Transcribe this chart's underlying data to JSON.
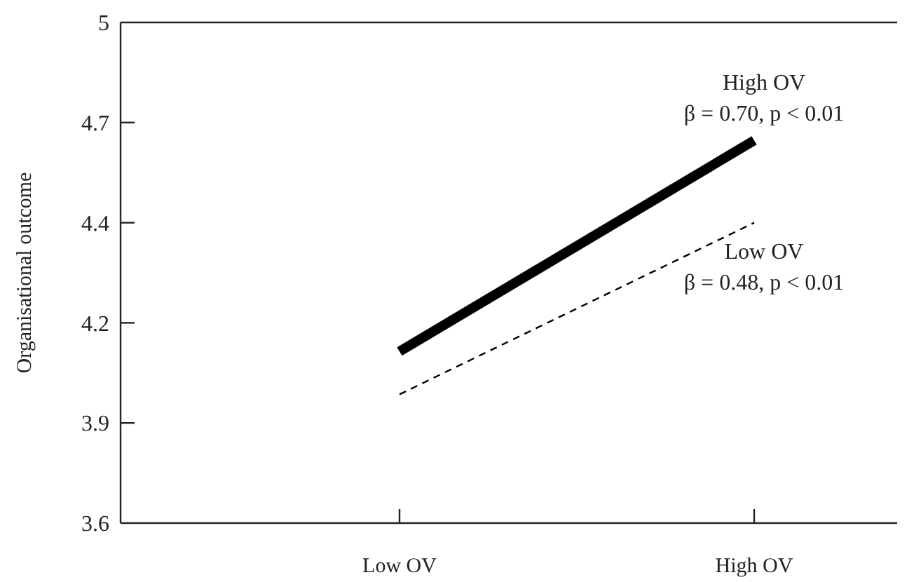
{
  "chart_data": {
    "type": "line",
    "ylabel": "Organisational outcome",
    "categories": [
      "Low OV",
      "High OV"
    ],
    "ylim": [
      3.6,
      5.0
    ],
    "yticks": [
      3.6,
      {
        "value": 3.88,
        "label": "3.9"
      },
      {
        "value": 4.16,
        "label": "4.2"
      },
      {
        "value": 4.44,
        "label": "4.4"
      },
      {
        "value": 4.72,
        "label": "4.7"
      },
      5.0
    ],
    "series": [
      {
        "name": "High OV",
        "color": "#000000",
        "line_style": "solid",
        "values": [
          4.08,
          4.67
        ]
      },
      {
        "name": "Low OV",
        "color": "#000000",
        "line_style": "dashed",
        "values": [
          3.96,
          4.44
        ]
      }
    ],
    "annotations": [
      "β = 0.70, p < 0.01",
      "β = 0.48, p < 0.01"
    ],
    "grid": false,
    "legend": false,
    "marker": "none"
  }
}
